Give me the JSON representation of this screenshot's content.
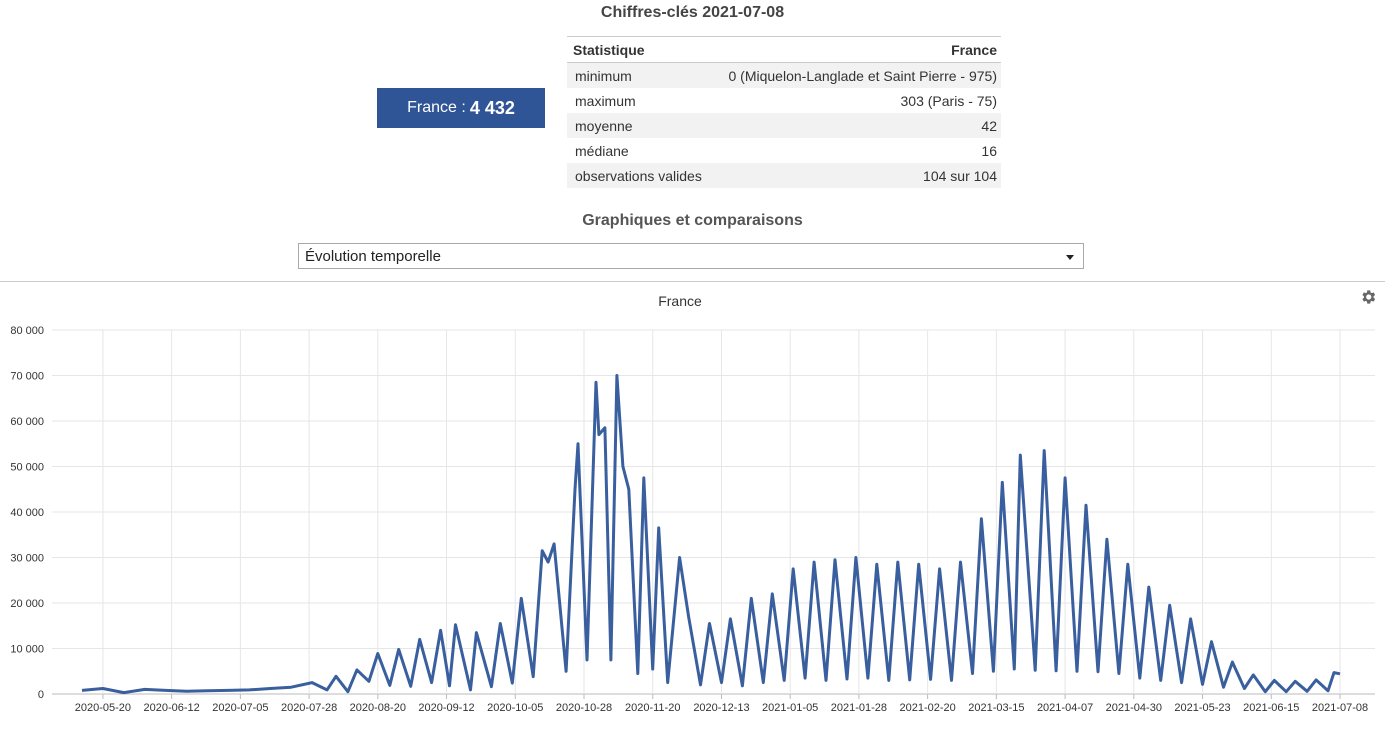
{
  "header": {
    "title": "Chiffres-clés 2021-07-08"
  },
  "badge": {
    "label": "France : ",
    "value": "4 432"
  },
  "stats": {
    "col1": "Statistique",
    "col2": "France",
    "rows": [
      {
        "label": "minimum",
        "value": "0 (Miquelon-Langlade et Saint Pierre - 975)"
      },
      {
        "label": "maximum",
        "value": "303 (Paris - 75)"
      },
      {
        "label": "moyenne",
        "value": "42"
      },
      {
        "label": "médiane",
        "value": "16"
      },
      {
        "label": "observations valides",
        "value": "104 sur 104"
      }
    ]
  },
  "graphs": {
    "title": "Graphiques et comparaisons",
    "selected": "Évolution temporelle"
  },
  "icons": {
    "settings": "gear-icon",
    "dropdown": "chevron-down-icon"
  },
  "colors": {
    "line": "#3a5f9e",
    "badge": "#2f5597"
  },
  "chart_data": {
    "type": "line",
    "title": "France",
    "ylim": [
      0,
      80000
    ],
    "yticks": [
      0,
      10000,
      20000,
      30000,
      40000,
      50000,
      60000,
      70000,
      80000
    ],
    "ytick_labels": [
      "0",
      "10 000",
      "20 000",
      "30 000",
      "40 000",
      "50 000",
      "60 000",
      "70 000",
      "80 000"
    ],
    "xlim": [
      "2020-05-13",
      "2021-07-08"
    ],
    "xtick_labels": [
      "2020-05-20",
      "2020-06-12",
      "2020-07-05",
      "2020-07-28",
      "2020-08-20",
      "2020-09-12",
      "2020-10-05",
      "2020-10-28",
      "2020-11-20",
      "2020-12-13",
      "2021-01-05",
      "2021-01-28",
      "2021-02-20",
      "2021-03-15",
      "2021-04-07",
      "2021-04-30",
      "2021-05-23",
      "2021-06-15",
      "2021-07-08"
    ],
    "grid": true,
    "legend": "none",
    "series": [
      {
        "x": [
          "2020-05-13",
          "2020-05-20",
          "2020-05-27",
          "2020-06-03",
          "2020-06-10",
          "2020-06-17",
          "2020-06-24",
          "2020-07-01",
          "2020-07-08",
          "2020-07-15",
          "2020-07-22",
          "2020-07-29",
          "2020-08-03",
          "2020-08-06",
          "2020-08-10",
          "2020-08-13",
          "2020-08-17",
          "2020-08-20",
          "2020-08-24",
          "2020-08-27",
          "2020-08-31",
          "2020-09-03",
          "2020-09-07",
          "2020-09-10",
          "2020-09-13",
          "2020-09-15",
          "2020-09-20",
          "2020-09-22",
          "2020-09-27",
          "2020-09-30",
          "2020-10-04",
          "2020-10-07",
          "2020-10-11",
          "2020-10-14",
          "2020-10-16",
          "2020-10-18",
          "2020-10-22",
          "2020-10-25",
          "2020-10-26",
          "2020-10-29",
          "2020-11-01",
          "2020-11-02",
          "2020-11-04",
          "2020-11-06",
          "2020-11-08",
          "2020-11-10",
          "2020-11-12",
          "2020-11-15",
          "2020-11-17",
          "2020-11-20",
          "2020-11-22",
          "2020-11-25",
          "2020-11-29",
          "2020-12-02",
          "2020-12-06",
          "2020-12-09",
          "2020-12-13",
          "2020-12-16",
          "2020-12-20",
          "2020-12-23",
          "2020-12-27",
          "2020-12-30",
          "2021-01-03",
          "2021-01-06",
          "2021-01-10",
          "2021-01-13",
          "2021-01-17",
          "2021-01-20",
          "2021-01-24",
          "2021-01-27",
          "2021-01-31",
          "2021-02-03",
          "2021-02-07",
          "2021-02-10",
          "2021-02-14",
          "2021-02-17",
          "2021-02-21",
          "2021-02-24",
          "2021-02-28",
          "2021-03-03",
          "2021-03-07",
          "2021-03-10",
          "2021-03-14",
          "2021-03-17",
          "2021-03-21",
          "2021-03-23",
          "2021-03-28",
          "2021-03-31",
          "2021-04-04",
          "2021-04-07",
          "2021-04-11",
          "2021-04-14",
          "2021-04-18",
          "2021-04-21",
          "2021-04-25",
          "2021-04-28",
          "2021-05-02",
          "2021-05-05",
          "2021-05-09",
          "2021-05-12",
          "2021-05-16",
          "2021-05-19",
          "2021-05-23",
          "2021-05-26",
          "2021-05-30",
          "2021-06-02",
          "2021-06-06",
          "2021-06-09",
          "2021-06-13",
          "2021-06-16",
          "2021-06-20",
          "2021-06-23",
          "2021-06-27",
          "2021-06-30",
          "2021-07-04",
          "2021-07-06",
          "2021-07-08"
        ],
        "values": [
          800,
          1200,
          300,
          1000,
          800,
          600,
          700,
          800,
          900,
          1200,
          1500,
          2500,
          900,
          3900,
          500,
          5300,
          2800,
          8900,
          1900,
          9800,
          1700,
          12000,
          2500,
          14000,
          1800,
          15200,
          900,
          13500,
          1600,
          15500,
          2400,
          21000,
          3800,
          31500,
          29000,
          33000,
          5000,
          45000,
          55000,
          7500,
          68500,
          57000,
          58500,
          7500,
          70000,
          50000,
          45000,
          4500,
          47500,
          5500,
          36500,
          2500,
          30000,
          17000,
          2000,
          15500,
          2500,
          16500,
          1800,
          21000,
          2500,
          22000,
          3000,
          27500,
          3500,
          29000,
          3000,
          29500,
          3300,
          30000,
          3500,
          28500,
          3000,
          29000,
          3100,
          28500,
          3200,
          27500,
          3000,
          29000,
          4500,
          38500,
          5000,
          46500,
          5500,
          52500,
          5200,
          53500,
          5100,
          47500,
          5000,
          41500,
          4900,
          34000,
          4500,
          28500,
          3500,
          23500,
          3000,
          19500,
          2500,
          16500,
          2100,
          11500,
          1500,
          7000,
          1200,
          4200,
          500,
          3000,
          500,
          2800,
          600,
          3100,
          700,
          4700,
          4432
        ]
      }
    ]
  }
}
